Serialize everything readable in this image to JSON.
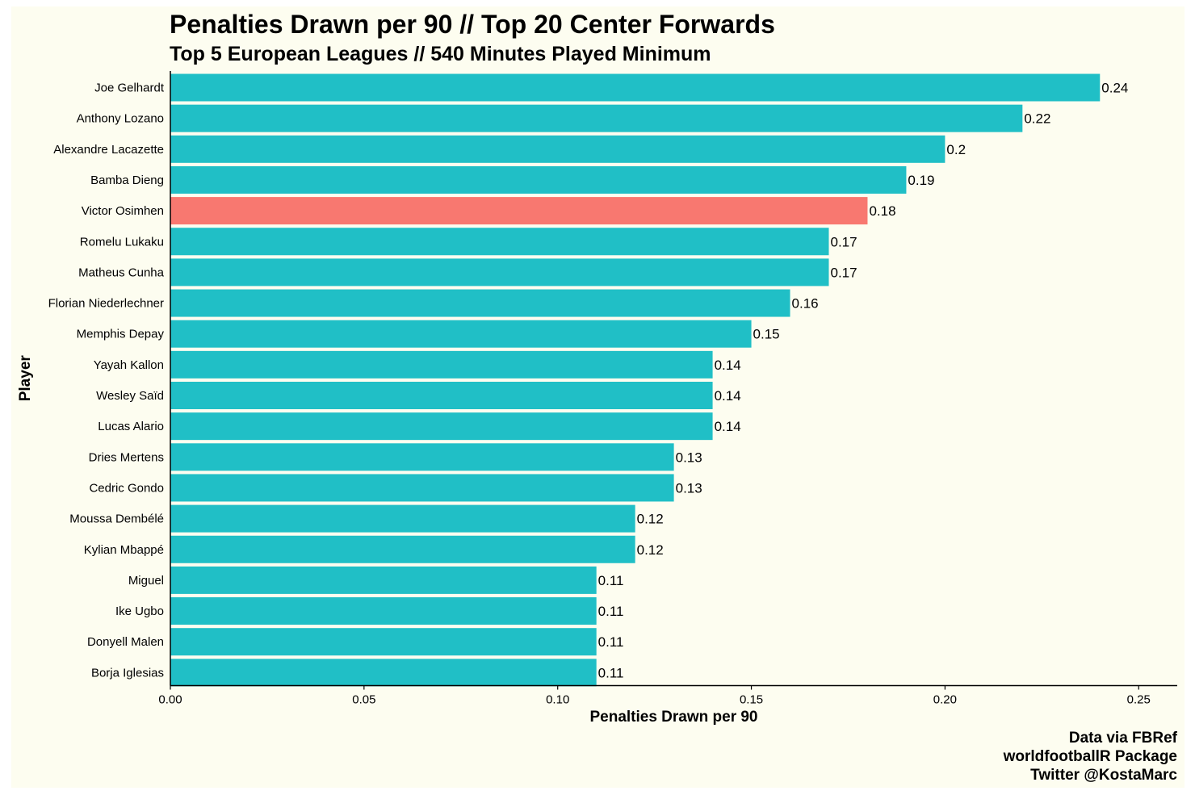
{
  "title": "Penalties Drawn per 90 // Top 20 Center Forwards",
  "subtitle": "Top 5 European Leagues // 540 Minutes Played Minimum",
  "caption": [
    "Data via FBRef",
    "worldfootballR Package",
    "Twitter @KostaMarc"
  ],
  "colors": {
    "background": "#fdfdf0",
    "bar_default": "#20bfc6",
    "bar_highlight": "#f87870",
    "axis": "#000000"
  },
  "chart_data": {
    "type": "bar",
    "orientation": "horizontal",
    "title": "Penalties Drawn per 90 // Top 20 Center Forwards",
    "subtitle": "Top 5 European Leagues // 540 Minutes Played Minimum",
    "xlabel": "Penalties Drawn per 90",
    "ylabel": "Player",
    "xlim": [
      0,
      0.26
    ],
    "xticks": [
      0,
      0.05,
      0.1,
      0.15,
      0.2,
      0.25
    ],
    "xtick_labels": [
      "0.00",
      "0.05",
      "0.10",
      "0.15",
      "0.20",
      "0.25"
    ],
    "grid": false,
    "highlight": "Victor Osimhen",
    "categories": [
      "Joe Gelhardt",
      "Anthony Lozano",
      "Alexandre Lacazette",
      "Bamba Dieng",
      "Victor Osimhen",
      "Romelu Lukaku",
      "Matheus Cunha",
      "Florian Niederlechner",
      "Memphis Depay",
      "Yayah Kallon",
      "Wesley Saïd",
      "Lucas Alario",
      "Dries Mertens",
      "Cedric Gondo",
      "Moussa Dembélé",
      "Kylian Mbappé",
      "Miguel",
      "Ike Ugbo",
      "Donyell Malen",
      "Borja Iglesias"
    ],
    "values": [
      0.24,
      0.22,
      0.2,
      0.19,
      0.18,
      0.17,
      0.17,
      0.16,
      0.15,
      0.14,
      0.14,
      0.14,
      0.13,
      0.13,
      0.12,
      0.12,
      0.11,
      0.11,
      0.11,
      0.11
    ],
    "value_labels": [
      "0.24",
      "0.22",
      "0.2",
      "0.19",
      "0.18",
      "0.17",
      "0.17",
      "0.16",
      "0.15",
      "0.14",
      "0.14",
      "0.14",
      "0.13",
      "0.13",
      "0.12",
      "0.12",
      "0.11",
      "0.11",
      "0.11",
      "0.11"
    ]
  }
}
